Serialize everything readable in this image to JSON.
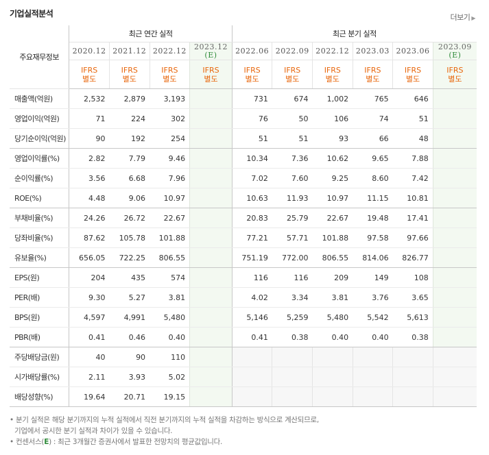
{
  "section_title": "기업실적분석",
  "more_link": "더보기",
  "corner_label": "주요재무정보",
  "annual_header": "최근 연간 실적",
  "quarter_header": "최근 분기 실적",
  "annual_periods": [
    "2020.12",
    "2021.12",
    "2022.12",
    "2023.12"
  ],
  "quarter_periods": [
    "2022.06",
    "2022.09",
    "2022.12",
    "2023.03",
    "2023.06",
    "2023.09"
  ],
  "estimate_mark": "(E)",
  "ifrs_label": "IFRS",
  "ifrs_sub": "별도",
  "rows": [
    {
      "label": "매출액(억원)",
      "annual": [
        "2,532",
        "2,879",
        "3,193",
        ""
      ],
      "quarter": [
        "731",
        "674",
        "1,002",
        "765",
        "646",
        ""
      ]
    },
    {
      "label": "영업이익(억원)",
      "annual": [
        "71",
        "224",
        "302",
        ""
      ],
      "quarter": [
        "76",
        "50",
        "106",
        "74",
        "51",
        ""
      ]
    },
    {
      "label": "당기순이익(억원)",
      "annual": [
        "90",
        "192",
        "254",
        ""
      ],
      "quarter": [
        "51",
        "51",
        "93",
        "66",
        "48",
        ""
      ]
    },
    {
      "label": "영업이익률(%)",
      "annual": [
        "2.82",
        "7.79",
        "9.46",
        ""
      ],
      "quarter": [
        "10.34",
        "7.36",
        "10.62",
        "9.65",
        "7.88",
        ""
      ]
    },
    {
      "label": "순이익률(%)",
      "annual": [
        "3.56",
        "6.68",
        "7.96",
        ""
      ],
      "quarter": [
        "7.02",
        "7.60",
        "9.25",
        "8.60",
        "7.42",
        ""
      ]
    },
    {
      "label": "ROE(%)",
      "annual": [
        "4.48",
        "9.06",
        "10.97",
        ""
      ],
      "quarter": [
        "10.63",
        "11.93",
        "10.97",
        "11.15",
        "10.81",
        ""
      ]
    },
    {
      "label": "부채비율(%)",
      "annual": [
        "24.26",
        "26.72",
        "22.67",
        ""
      ],
      "quarter": [
        "20.83",
        "25.79",
        "22.67",
        "19.48",
        "17.41",
        ""
      ]
    },
    {
      "label": "당좌비율(%)",
      "annual": [
        "87.62",
        "105.78",
        "101.88",
        ""
      ],
      "quarter": [
        "77.21",
        "57.71",
        "101.88",
        "97.58",
        "97.66",
        ""
      ]
    },
    {
      "label": "유보율(%)",
      "annual": [
        "656.05",
        "722.25",
        "806.55",
        ""
      ],
      "quarter": [
        "751.19",
        "772.00",
        "806.55",
        "814.06",
        "826.77",
        ""
      ]
    },
    {
      "label": "EPS(원)",
      "annual": [
        "204",
        "435",
        "574",
        ""
      ],
      "quarter": [
        "116",
        "116",
        "209",
        "149",
        "108",
        ""
      ]
    },
    {
      "label": "PER(배)",
      "annual": [
        "9.30",
        "5.27",
        "3.81",
        ""
      ],
      "quarter": [
        "4.02",
        "3.34",
        "3.81",
        "3.76",
        "3.65",
        ""
      ]
    },
    {
      "label": "BPS(원)",
      "annual": [
        "4,597",
        "4,991",
        "5,480",
        ""
      ],
      "quarter": [
        "5,146",
        "5,259",
        "5,480",
        "5,542",
        "5,613",
        ""
      ]
    },
    {
      "label": "PBR(배)",
      "annual": [
        "0.41",
        "0.46",
        "0.40",
        ""
      ],
      "quarter": [
        "0.41",
        "0.38",
        "0.40",
        "0.40",
        "0.38",
        ""
      ]
    },
    {
      "label": "주당배당금(원)",
      "annual": [
        "40",
        "90",
        "110",
        ""
      ],
      "quarter": [
        "",
        "",
        "",
        "",
        "",
        ""
      ]
    },
    {
      "label": "시가배당률(%)",
      "annual": [
        "2.11",
        "3.93",
        "5.02",
        ""
      ],
      "quarter": [
        "",
        "",
        "",
        "",
        "",
        ""
      ]
    },
    {
      "label": "배당성향(%)",
      "annual": [
        "19.64",
        "20.71",
        "19.15",
        ""
      ],
      "quarter": [
        "",
        "",
        "",
        "",
        "",
        ""
      ]
    }
  ],
  "footnotes": {
    "line1": "분기 실적은 해당 분기까지의 누적 실적에서 직전 분기까지의 누적 실적을 차감하는 방식으로 계산되므로,",
    "line2": "기업에서 공시한 분기 실적과 차이가 있을 수 있습니다.",
    "line3_prefix": "컨센서스(",
    "line3_mark": "E",
    "line3_suffix": ") : 최근 3개월간 증권사에서 발표한 전망치의 평균값입니다."
  }
}
